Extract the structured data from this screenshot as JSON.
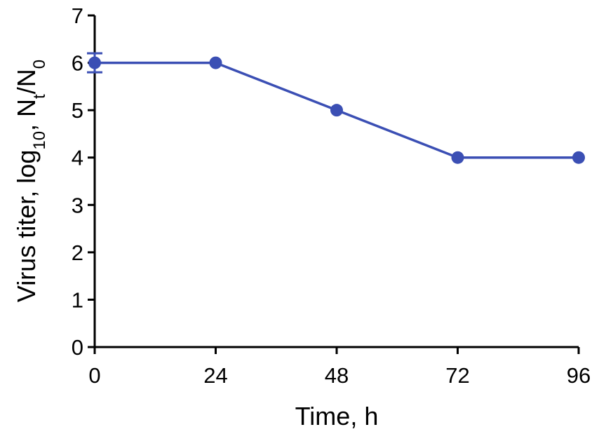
{
  "chart_data": {
    "type": "line",
    "title": "",
    "xlabel": "Time, h",
    "ylabel": {
      "prefix": "Virus titer, log",
      "log_subscript": "10",
      "middle": ", N",
      "numerator_subscript": "t",
      "slash": "/N",
      "denominator_subscript": "0"
    },
    "x": [
      0,
      24,
      48,
      72,
      96
    ],
    "xticks": [
      "0",
      "24",
      "48",
      "72",
      "96"
    ],
    "xlim": [
      0,
      96
    ],
    "yticks": [
      "0",
      "1",
      "2",
      "3",
      "4",
      "5",
      "6",
      "7"
    ],
    "ylim": [
      0,
      7
    ],
    "grid": false,
    "series": [
      {
        "values": [
          6,
          6,
          5,
          4,
          4
        ],
        "error": [
          0.2,
          0,
          0,
          0,
          0
        ],
        "color": "#3b4fb4",
        "marker": "circle"
      }
    ]
  }
}
